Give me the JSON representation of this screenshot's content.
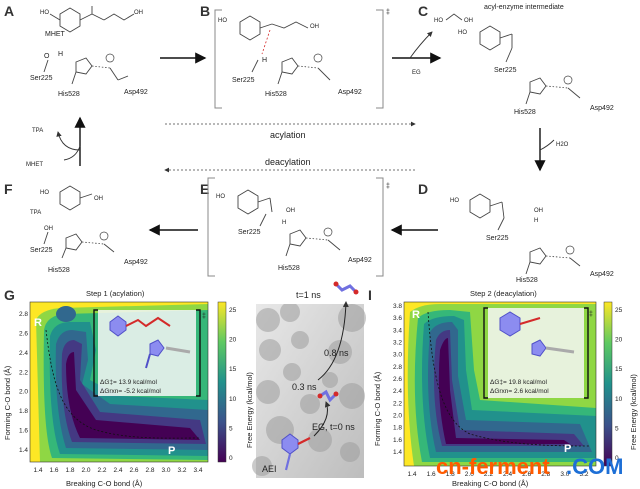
{
  "panels": {
    "A": {
      "label": "A",
      "mhet": "MHET",
      "ser": "Ser225",
      "his": "His528",
      "asp": "Asp492",
      "h": "H"
    },
    "B": {
      "label": "B",
      "ser": "Ser225",
      "his": "His528",
      "asp": "Asp492",
      "dagger": "‡"
    },
    "C": {
      "label": "C",
      "title": "acyl-enzyme intermediate",
      "eg": "EG",
      "ho": "HO",
      "oh": "OH",
      "ser": "Ser225",
      "his": "His528",
      "asp": "Asp492"
    },
    "D": {
      "label": "D",
      "h2o": "H2O",
      "ser": "Ser225",
      "his": "His528",
      "asp": "Asp492",
      "oh": "OH",
      "h": "H"
    },
    "E": {
      "label": "E",
      "ser": "Ser225",
      "his": "His528",
      "asp": "Asp492",
      "oh": "OH",
      "h": "H",
      "dagger": "‡"
    },
    "F": {
      "label": "F",
      "tpa": "TPA",
      "ser": "Ser225",
      "his": "His528",
      "asp": "Asp492",
      "oh": "OH"
    },
    "cycle": {
      "tpa": "TPA",
      "mhet": "MHET",
      "acylation": "acylation",
      "deacylation": "deacylation"
    }
  },
  "heatmap_G": {
    "label": "G",
    "title": "Step 1 (acylation)",
    "xlabel": "Breaking C-O bond (Å)",
    "ylabel": "Forming C-O bond (Å)",
    "colorbar_label": "Free Energy (kcal/mol)",
    "xticks": [
      "1.4",
      "1.6",
      "1.8",
      "2.0",
      "2.2",
      "2.4",
      "2.6",
      "2.8",
      "3.0",
      "3.2",
      "3.4"
    ],
    "yticks": [
      "2.8",
      "2.6",
      "2.4",
      "2.2",
      "2.0",
      "1.8",
      "1.6",
      "1.4"
    ],
    "cbticks": [
      "25",
      "20",
      "15",
      "10",
      "5",
      "0"
    ],
    "R": "R",
    "P": "P",
    "dagger": "‡",
    "dg1": "ΔG‡= 13.9 kcal/mol",
    "dg2": "ΔGrxn= -5.2 kcal/mol"
  },
  "panel_H": {
    "label": "H",
    "t1": "t=1 ns",
    "t08": "0.8 ns",
    "t03": "0.3 ns",
    "aei": "AEI",
    "eg": "EG, t=0 ns"
  },
  "heatmap_I": {
    "label": "I",
    "title": "Step 2 (deacylation)",
    "xlabel": "Breaking C-O bond (Å)",
    "ylabel": "Forming C-O bond (Å)",
    "colorbar_label": "Free Energy (kcal/mol)",
    "xticks": [
      "1.4",
      "1.6",
      "1.8",
      "2.0",
      "2.2",
      "2.4",
      "2.6",
      "2.8",
      "3.0",
      "3.2"
    ],
    "yticks": [
      "3.8",
      "3.6",
      "3.4",
      "3.2",
      "3.0",
      "2.8",
      "2.6",
      "2.4",
      "2.2",
      "2.0",
      "1.8",
      "1.6",
      "1.4"
    ],
    "cbticks": [
      "25",
      "20",
      "15",
      "10",
      "5",
      "0"
    ],
    "R": "R",
    "P": "P",
    "dagger": "‡",
    "dg1": "ΔG‡= 19.8 kcal/mol",
    "dg2": "ΔGrxn= 2.6 kcal/mol"
  },
  "watermark": {
    "part1": "cn-ferment",
    "part2": ".COM"
  },
  "colors": {
    "ohGreen": "#22aa22",
    "hBlue": "#2b45d8",
    "oRed": "#d42a2a",
    "viridisDark": "#440154",
    "viridisMid": "#21918c",
    "viridisLight": "#fde725"
  }
}
